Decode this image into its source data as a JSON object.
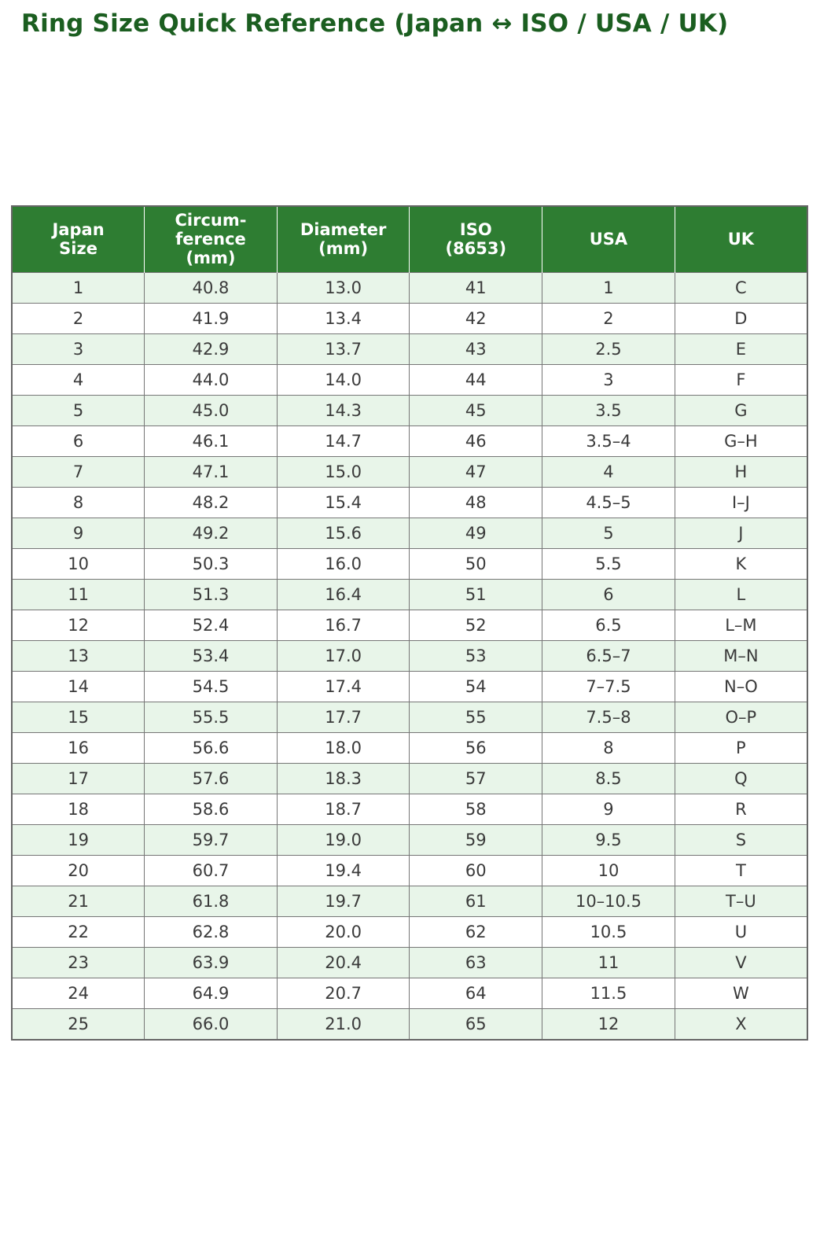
{
  "page": {
    "title": "Ring Size Quick Reference (Japan ↔ ISO / USA / UK)"
  },
  "colors": {
    "title_text": "#1b5e20",
    "header_bg": "#2e7d32",
    "header_text": "#ffffff",
    "row_alt_bg": "#e8f5e9",
    "row_bg": "#ffffff",
    "grid_border": "#767676",
    "cell_text": "#3a3a3a"
  },
  "table": {
    "columns": [
      "Japan\nSize",
      "Circum-\nference\n(mm)",
      "Diameter\n(mm)",
      "ISO\n(8653)",
      "USA",
      "UK"
    ],
    "rows": [
      [
        "1",
        "40.8",
        "13.0",
        "41",
        "1",
        "C"
      ],
      [
        "2",
        "41.9",
        "13.4",
        "42",
        "2",
        "D"
      ],
      [
        "3",
        "42.9",
        "13.7",
        "43",
        "2.5",
        "E"
      ],
      [
        "4",
        "44.0",
        "14.0",
        "44",
        "3",
        "F"
      ],
      [
        "5",
        "45.0",
        "14.3",
        "45",
        "3.5",
        "G"
      ],
      [
        "6",
        "46.1",
        "14.7",
        "46",
        "3.5–4",
        "G–H"
      ],
      [
        "7",
        "47.1",
        "15.0",
        "47",
        "4",
        "H"
      ],
      [
        "8",
        "48.2",
        "15.4",
        "48",
        "4.5–5",
        "I–J"
      ],
      [
        "9",
        "49.2",
        "15.6",
        "49",
        "5",
        "J"
      ],
      [
        "10",
        "50.3",
        "16.0",
        "50",
        "5.5",
        "K"
      ],
      [
        "11",
        "51.3",
        "16.4",
        "51",
        "6",
        "L"
      ],
      [
        "12",
        "52.4",
        "16.7",
        "52",
        "6.5",
        "L–M"
      ],
      [
        "13",
        "53.4",
        "17.0",
        "53",
        "6.5–7",
        "M–N"
      ],
      [
        "14",
        "54.5",
        "17.4",
        "54",
        "7–7.5",
        "N–O"
      ],
      [
        "15",
        "55.5",
        "17.7",
        "55",
        "7.5–8",
        "O–P"
      ],
      [
        "16",
        "56.6",
        "18.0",
        "56",
        "8",
        "P"
      ],
      [
        "17",
        "57.6",
        "18.3",
        "57",
        "8.5",
        "Q"
      ],
      [
        "18",
        "58.6",
        "18.7",
        "58",
        "9",
        "R"
      ],
      [
        "19",
        "59.7",
        "19.0",
        "59",
        "9.5",
        "S"
      ],
      [
        "20",
        "60.7",
        "19.4",
        "60",
        "10",
        "T"
      ],
      [
        "21",
        "61.8",
        "19.7",
        "61",
        "10–10.5",
        "T–U"
      ],
      [
        "22",
        "62.8",
        "20.0",
        "62",
        "10.5",
        "U"
      ],
      [
        "23",
        "63.9",
        "20.4",
        "63",
        "11",
        "V"
      ],
      [
        "24",
        "64.9",
        "20.7",
        "64",
        "11.5",
        "W"
      ],
      [
        "25",
        "66.0",
        "21.0",
        "65",
        "12",
        "X"
      ]
    ]
  }
}
